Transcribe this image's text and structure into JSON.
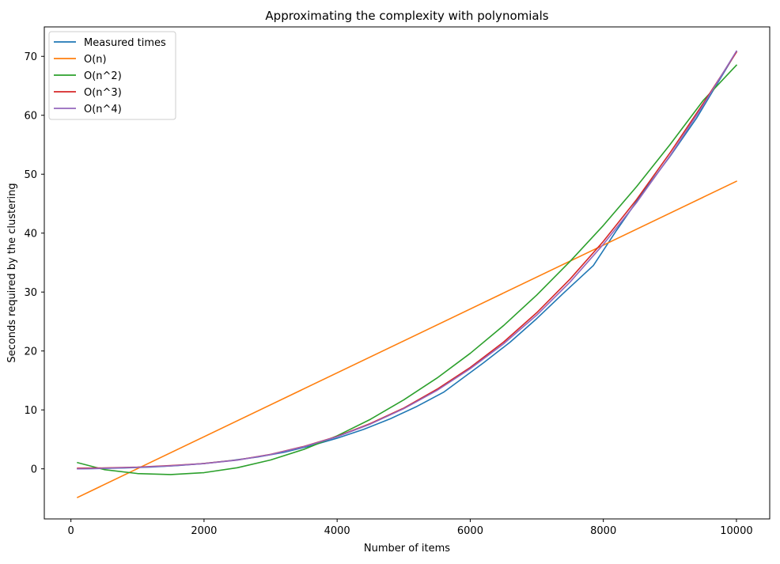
{
  "chart_data": {
    "type": "line",
    "title": "Approximating the complexity with polynomials",
    "xlabel": "Number of items",
    "ylabel": "Seconds required by the clustering",
    "xlim": [
      -400,
      10500
    ],
    "ylim": [
      -8.5,
      75
    ],
    "x_ticks": [
      0,
      2000,
      4000,
      6000,
      8000,
      10000
    ],
    "y_ticks": [
      0,
      10,
      20,
      30,
      40,
      50,
      60,
      70
    ],
    "grid": false,
    "legend_position": "top-left",
    "series": [
      {
        "name": "Measured times",
        "color": "#1f77b4",
        "x": [
          100,
          400,
          800,
          1200,
          1600,
          2000,
          2400,
          2800,
          3200,
          3600,
          4000,
          4400,
          4800,
          5200,
          5600,
          6200,
          6600,
          7000,
          7400,
          7850,
          8200,
          8600,
          9000,
          9400,
          10000
        ],
        "y": [
          0.0,
          0.05,
          0.15,
          0.3,
          0.55,
          0.9,
          1.4,
          2.0,
          2.8,
          3.9,
          5.2,
          6.7,
          8.5,
          10.6,
          13.0,
          18.0,
          21.5,
          25.5,
          29.8,
          34.5,
          40.5,
          47.0,
          53.0,
          59.5,
          70.8
        ]
      },
      {
        "name": "O(n)",
        "color": "#ff7f0e",
        "x": [
          100,
          10000
        ],
        "y": [
          -4.85,
          48.8
        ]
      },
      {
        "name": "O(n^2)",
        "color": "#2ca02c",
        "x": [
          100,
          500,
          1000,
          1500,
          2000,
          2500,
          3000,
          3500,
          4000,
          4500,
          5000,
          5500,
          6000,
          6500,
          7000,
          7500,
          8000,
          8500,
          9000,
          9500,
          10000
        ],
        "y": [
          1.05,
          -0.13,
          -0.8,
          -0.98,
          -0.65,
          0.18,
          1.5,
          3.3,
          5.6,
          8.4,
          11.7,
          15.4,
          19.6,
          24.3,
          29.5,
          35.2,
          41.3,
          47.9,
          55.0,
          62.5,
          68.5
        ]
      },
      {
        "name": "O(n^3)",
        "color": "#d62728",
        "x": [
          100,
          500,
          1000,
          1500,
          2000,
          2500,
          3000,
          3500,
          4000,
          4500,
          5000,
          5500,
          6000,
          6500,
          7000,
          7500,
          8000,
          8500,
          9000,
          9500,
          10000
        ],
        "y": [
          0.1,
          0.15,
          0.28,
          0.55,
          0.9,
          1.5,
          2.45,
          3.8,
          5.5,
          7.7,
          10.3,
          13.5,
          17.2,
          21.5,
          26.5,
          32.2,
          38.6,
          45.7,
          53.6,
          62.0,
          70.7
        ]
      },
      {
        "name": "O(n^4)",
        "color": "#9467bd",
        "x": [
          100,
          500,
          1000,
          1500,
          2000,
          2500,
          3000,
          3500,
          4000,
          4500,
          5000,
          5500,
          6000,
          6500,
          7000,
          7500,
          8000,
          8500,
          9000,
          9500,
          10000
        ],
        "y": [
          0.0,
          0.1,
          0.25,
          0.5,
          0.88,
          1.48,
          2.42,
          3.75,
          5.45,
          7.6,
          10.2,
          13.3,
          17.0,
          21.2,
          26.1,
          31.7,
          38.1,
          45.2,
          53.1,
          61.7,
          70.9
        ]
      }
    ]
  }
}
